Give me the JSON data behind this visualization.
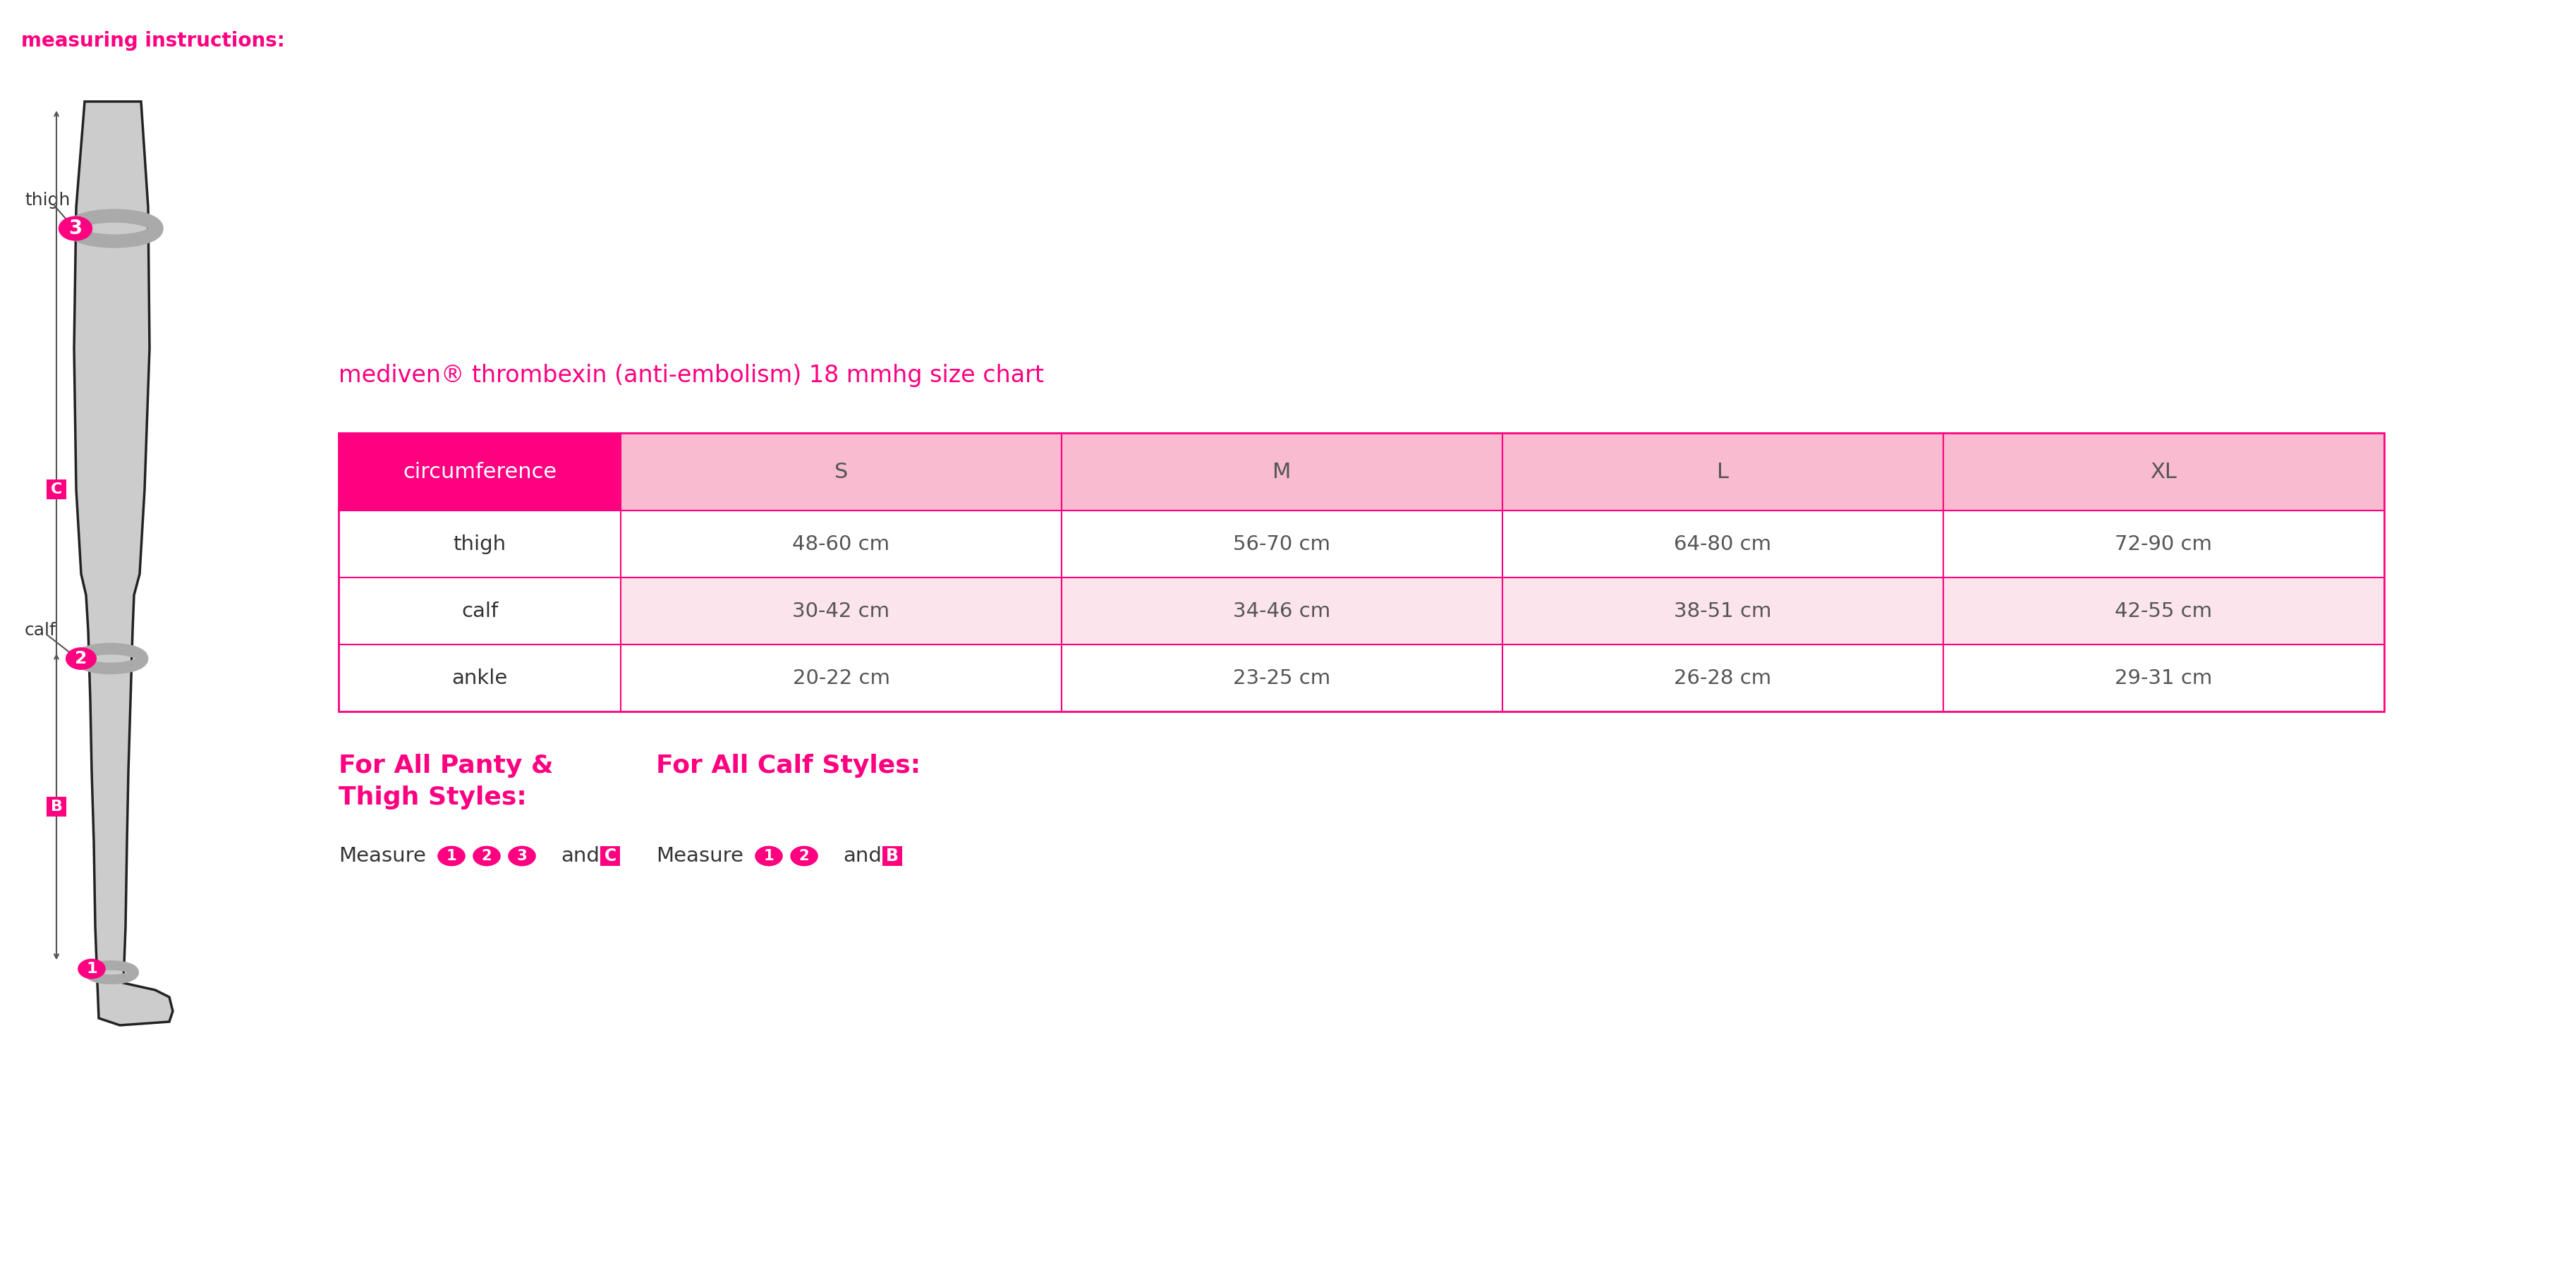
{
  "title": "measuring instructions:",
  "chart_title": "mediven® thrombexin (anti-embolism) 18 mmhg size chart",
  "pink": "#FF0080",
  "dark_pink": "#E6007E",
  "light_pink_bg": "#FFB3D9",
  "table_header_bg": "#E6007E",
  "table_row1_bg": "#FFFFFF",
  "table_row2_bg": "#FCE4EC",
  "table_border": "#E6007E",
  "headers": [
    "circumference",
    "S",
    "M",
    "L",
    "XL"
  ],
  "rows": [
    [
      "thigh",
      "48-60 cm",
      "56-70 cm",
      "64-80 cm",
      "72-90 cm"
    ],
    [
      "calf",
      "30-42 cm",
      "34-46 cm",
      "38-51 cm",
      "42-55 cm"
    ],
    [
      "ankle",
      "20-22 cm",
      "23-25 cm",
      "26-28 cm",
      "29-31 cm"
    ]
  ],
  "panty_title": "For All Panty &\nThigh Styles:",
  "panty_measure": "Measure",
  "panty_badges": [
    "1",
    "2",
    "3"
  ],
  "panty_end": "and",
  "panty_letter": "C",
  "calf_title": "For All Calf Styles:",
  "calf_measure": "Measure",
  "calf_badges": [
    "1",
    "2"
  ],
  "calf_end": "and",
  "calf_letter": "B",
  "bg_color": "#FFFFFF"
}
